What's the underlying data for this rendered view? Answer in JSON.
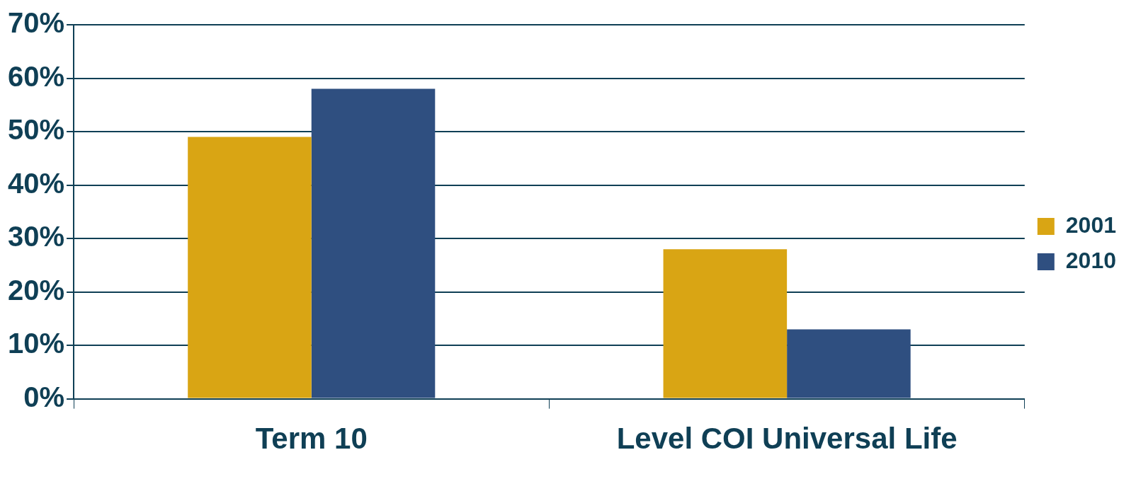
{
  "chart_data": {
    "type": "bar",
    "categories": [
      "Term 10",
      "Level COI Universal Life"
    ],
    "series": [
      {
        "name": "2001",
        "color": "#d9a514",
        "values": [
          49,
          28
        ]
      },
      {
        "name": "2010",
        "color": "#2f4f80",
        "values": [
          58,
          13
        ]
      }
    ],
    "ylim": [
      0,
      70
    ],
    "yticks": [
      {
        "value": 0,
        "label": "0%"
      },
      {
        "value": 10,
        "label": "10%"
      },
      {
        "value": 20,
        "label": "20%"
      },
      {
        "value": 30,
        "label": "30%"
      },
      {
        "value": 40,
        "label": "40%"
      },
      {
        "value": 50,
        "label": "50%"
      },
      {
        "value": 60,
        "label": "60%"
      },
      {
        "value": 70,
        "label": "70%"
      }
    ],
    "grid": "y",
    "legend": "right"
  }
}
